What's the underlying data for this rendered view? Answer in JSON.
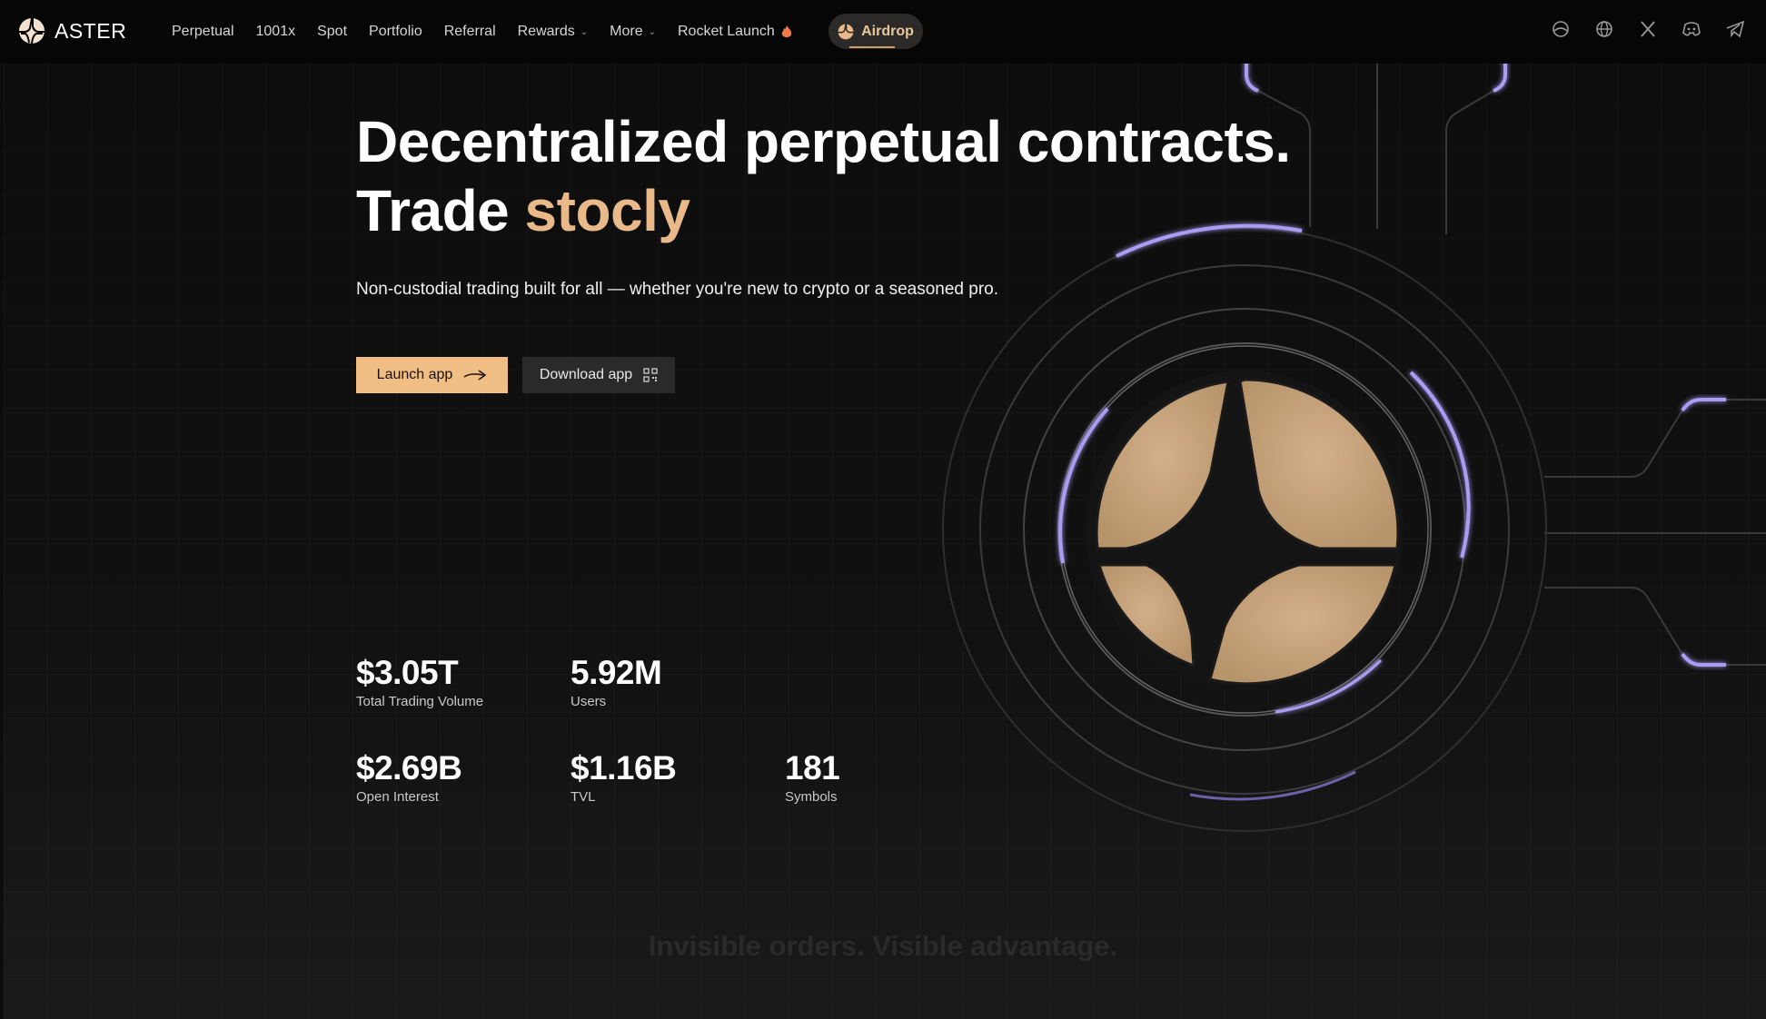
{
  "brand": {
    "name": "ASTER",
    "logo_icon": "aster-logo-icon"
  },
  "nav": {
    "items": [
      {
        "label": "Perpetual",
        "has_dropdown": false
      },
      {
        "label": "1001x",
        "has_dropdown": false
      },
      {
        "label": "Spot",
        "has_dropdown": false
      },
      {
        "label": "Portfolio",
        "has_dropdown": false
      },
      {
        "label": "Referral",
        "has_dropdown": false
      },
      {
        "label": "Rewards",
        "has_dropdown": true
      },
      {
        "label": "More",
        "has_dropdown": true
      },
      {
        "label": "Rocket Launch",
        "has_dropdown": false,
        "icon": "flame-icon"
      }
    ],
    "airdrop": {
      "label": "Airdrop",
      "icon": "aster-logo-icon"
    }
  },
  "social": [
    "theme-toggle-icon",
    "globe-icon",
    "x-icon",
    "discord-icon",
    "telegram-icon"
  ],
  "hero": {
    "headline_line1": "Decentralized perpetual contracts.",
    "headline_line2_prefix": "Trade ",
    "headline_line2_accent": "stocly",
    "subtitle": "Non-custodial trading built for all — whether you're new to crypto or a seasoned pro.",
    "launch_label": "Launch app",
    "download_label": "Download app"
  },
  "stats": [
    {
      "value": "$3.05T",
      "label": "Total Trading Volume"
    },
    {
      "value": "5.92M",
      "label": "Users"
    },
    {
      "value": "$2.69B",
      "label": "Open Interest"
    },
    {
      "value": "$1.16B",
      "label": "TVL"
    },
    {
      "value": "181",
      "label": "Symbols"
    }
  ],
  "next_section": {
    "heading": "Invisible orders. Visible advantage."
  },
  "colors": {
    "accent": "#f0bd85",
    "logo_fill": "#c9a47d",
    "ring_glow": "#a99cf2",
    "background": "#0c0c0c"
  }
}
